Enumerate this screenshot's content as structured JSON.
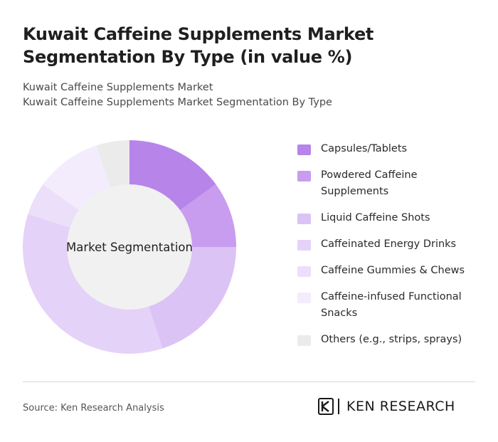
{
  "title": "Kuwait Caffeine Supplements Market Segmentation By Type (in value %)",
  "subtitle_line1": "Kuwait Caffeine Supplements Market",
  "subtitle_line2": "Kuwait Caffeine Supplements Market Segmentation By Type",
  "center_label": "Market Segmentation",
  "source": "Source: Ken Research Analysis",
  "logo": {
    "brand": "KEN RESEARCH",
    "icon": "ken-research-logo-icon"
  },
  "chart_data": {
    "type": "pie",
    "variant": "donut",
    "categories": [
      "Capsules/Tablets",
      "Powdered Caffeine Supplements",
      "Liquid Caffeine Shots",
      "Caffeinated Energy Drinks",
      "Caffeine Gummies & Chews",
      "Caffeine-infused Functional Snacks",
      "Others (e.g., strips, sprays)"
    ],
    "values": [
      15,
      10,
      20,
      35,
      5,
      10,
      5
    ],
    "colors": [
      "#b784ea",
      "#c89cef",
      "#dcc3f5",
      "#e5d2f8",
      "#ecdffa",
      "#f3ecfc",
      "#ebebeb"
    ],
    "legend_position": "right"
  }
}
